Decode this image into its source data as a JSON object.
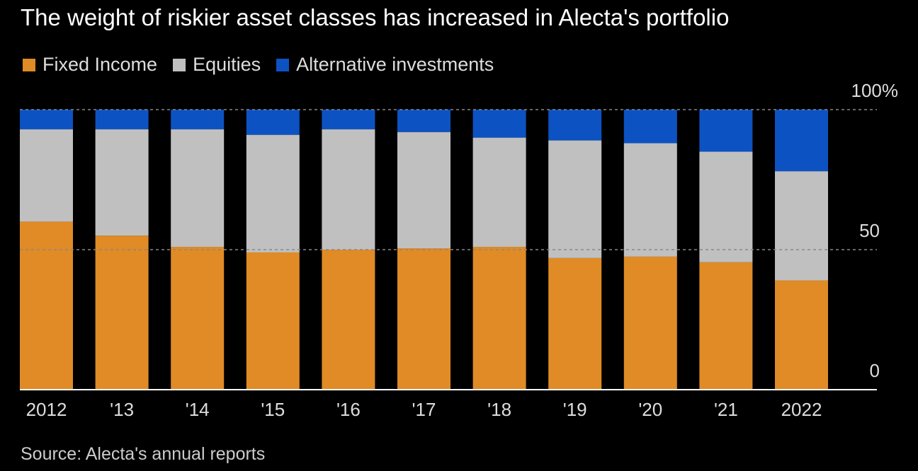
{
  "chart_data": {
    "type": "bar",
    "stacked": true,
    "title": "The weight of riskier asset classes has increased in Alecta's portfolio",
    "categories": [
      "2012",
      "'13",
      "'14",
      "'15",
      "'16",
      "'17",
      "'18",
      "'19",
      "'20",
      "'21",
      "2022"
    ],
    "series": [
      {
        "name": "Fixed Income",
        "color": "#e08b25",
        "values": [
          60,
          55,
          51,
          49,
          50,
          50.5,
          51,
          47,
          47.5,
          45.5,
          39
        ]
      },
      {
        "name": "Equities",
        "color": "#c0c0c0",
        "values": [
          33,
          38,
          42,
          42,
          43,
          41.5,
          39,
          42,
          40.5,
          39.5,
          39
        ]
      },
      {
        "name": "Alternative investments",
        "color": "#0d52c2",
        "values": [
          7,
          7,
          7,
          9,
          7,
          8,
          10,
          11,
          12,
          15,
          22
        ]
      }
    ],
    "yticks": [
      {
        "value": 0,
        "label": "0"
      },
      {
        "value": 50,
        "label": "50"
      },
      {
        "value": 100,
        "label": "100%"
      }
    ],
    "ylim": [
      0,
      100
    ],
    "grid": true,
    "legend": "top-left",
    "source": "Source: Alecta's annual reports"
  }
}
